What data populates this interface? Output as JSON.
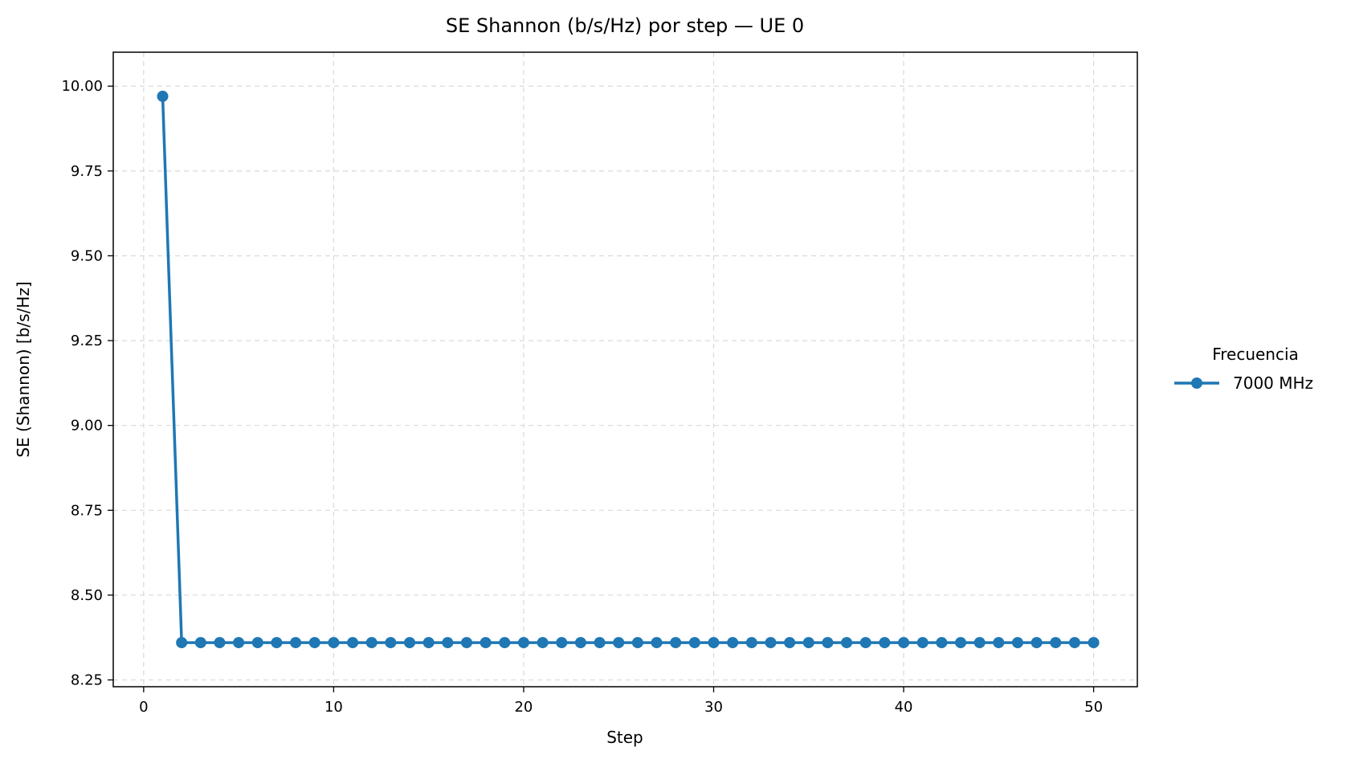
{
  "chart_data": {
    "type": "line",
    "title": "SE Shannon (b/s/Hz) por step — UE 0",
    "xlabel": "Step",
    "ylabel": "SE (Shannon) [b/s/Hz]",
    "xlim": [
      -1.6,
      52.3
    ],
    "ylim": [
      8.23,
      10.1
    ],
    "xticks": [
      0,
      10,
      20,
      30,
      40,
      50
    ],
    "yticks": [
      8.25,
      8.5,
      8.75,
      9.0,
      9.25,
      9.5,
      9.75,
      10.0
    ],
    "xtick_labels": [
      "0",
      "10",
      "20",
      "30",
      "40",
      "50"
    ],
    "ytick_labels": [
      "8.25",
      "8.50",
      "8.75",
      "9.00",
      "9.25",
      "9.50",
      "9.75",
      "10.00"
    ],
    "grid": true,
    "legend": {
      "title": "Frecuencia",
      "placement": "outside-right"
    },
    "series": [
      {
        "name": "7000 MHz",
        "color": "#1f77b4",
        "marker": "circle",
        "x": [
          1,
          2,
          3,
          4,
          5,
          6,
          7,
          8,
          9,
          10,
          11,
          12,
          13,
          14,
          15,
          16,
          17,
          18,
          19,
          20,
          21,
          22,
          23,
          24,
          25,
          26,
          27,
          28,
          29,
          30,
          31,
          32,
          33,
          34,
          35,
          36,
          37,
          38,
          39,
          40,
          41,
          42,
          43,
          44,
          45,
          46,
          47,
          48,
          49,
          50
        ],
        "y": [
          9.97,
          8.36,
          8.36,
          8.36,
          8.36,
          8.36,
          8.36,
          8.36,
          8.36,
          8.36,
          8.36,
          8.36,
          8.36,
          8.36,
          8.36,
          8.36,
          8.36,
          8.36,
          8.36,
          8.36,
          8.36,
          8.36,
          8.36,
          8.36,
          8.36,
          8.36,
          8.36,
          8.36,
          8.36,
          8.36,
          8.36,
          8.36,
          8.36,
          8.36,
          8.36,
          8.36,
          8.36,
          8.36,
          8.36,
          8.36,
          8.36,
          8.36,
          8.36,
          8.36,
          8.36,
          8.36,
          8.36,
          8.36,
          8.36,
          8.36
        ]
      }
    ]
  }
}
